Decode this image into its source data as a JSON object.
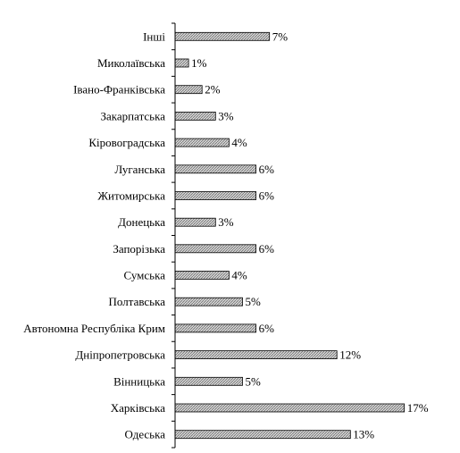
{
  "chart_data": {
    "type": "bar",
    "orientation": "horizontal",
    "title": "",
    "xlabel": "",
    "ylabel": "",
    "categories": [
      "Інші",
      "Миколаївська",
      "Івано-Франківська",
      "Закарпатська",
      "Кіровоградська",
      "Луганська",
      "Житомирська",
      "Донецька",
      "Запорізька",
      "Сумська",
      "Полтавська",
      "Автономна Республіка Крим",
      "Дніпропетровська",
      "Вінницька",
      "Харківська",
      "Одеська"
    ],
    "values": [
      7,
      1,
      2,
      3,
      4,
      6,
      6,
      3,
      6,
      4,
      5,
      6,
      12,
      5,
      17,
      13
    ],
    "value_labels": [
      "7%",
      "1%",
      "2%",
      "3%",
      "4%",
      "6%",
      "6%",
      "3%",
      "6%",
      "4%",
      "5%",
      "6%",
      "12%",
      "5%",
      "17%",
      "13%"
    ],
    "unit": "%",
    "xlim": [
      0,
      17
    ],
    "grid": false,
    "bar_pattern": "grey-hatched",
    "colors": {
      "bar_fill": "#c8c8c8",
      "bar_stroke": "#000000",
      "axis": "#000000"
    }
  }
}
